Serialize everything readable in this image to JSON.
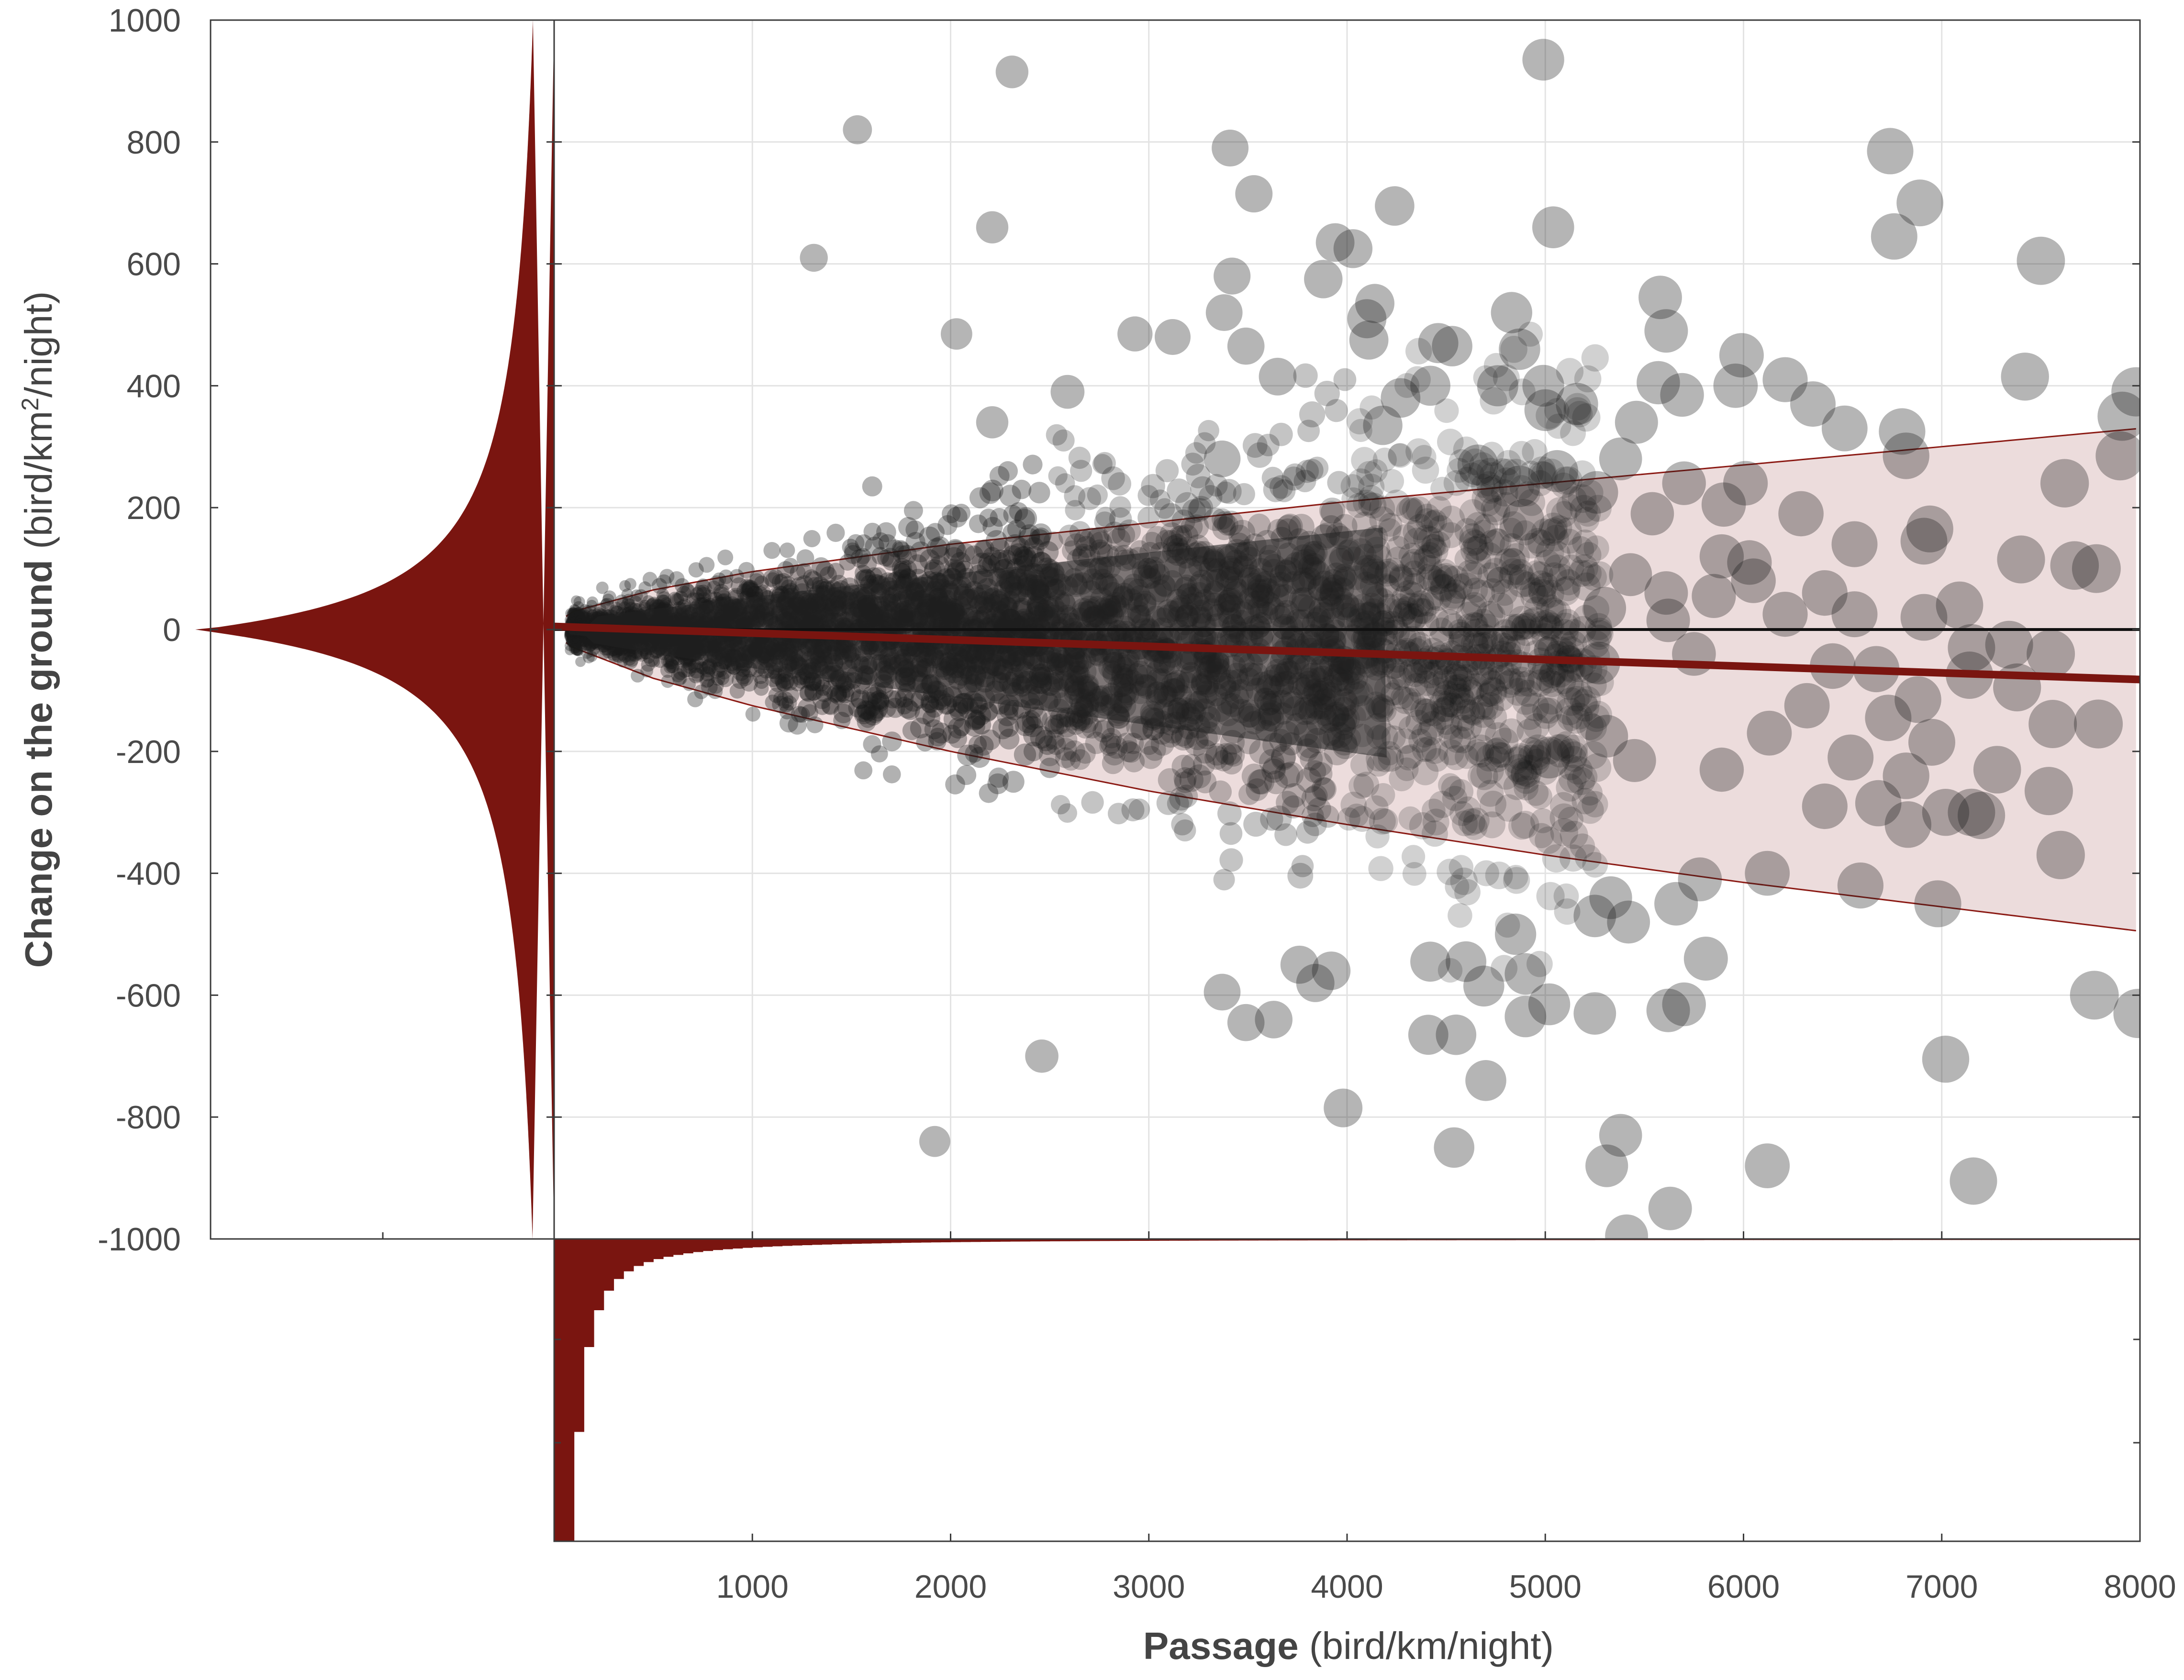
{
  "chart_data": {
    "type": "scatter",
    "xlabel": {
      "bold": "Passage",
      "normal": " (bird/km/night)"
    },
    "ylabel": {
      "bold": "Change on the ground",
      "normal_pre": " (bird/km",
      "sup": "2",
      "normal_post": "/night)"
    },
    "xlim": [
      0,
      8000
    ],
    "ylim": [
      -1000,
      1000
    ],
    "x_ticks": [
      "1000",
      "2000",
      "3000",
      "4000",
      "5000",
      "6000",
      "7000",
      "8000"
    ],
    "y_ticks": [
      "1000",
      "800",
      "600",
      "400",
      "200",
      "0",
      "-200",
      "-400",
      "-600",
      "-800",
      "-1000"
    ],
    "grid": true,
    "colors": {
      "points": "#1a1a1a",
      "histogram": "#7a1510",
      "envelope_fill": "#ecdcdc",
      "envelope_line": "#8b1a14",
      "trend_line": "#7a1510",
      "zero_line": "#111111"
    },
    "trend_line": {
      "x": [
        0,
        8000
      ],
      "y": [
        5,
        -82
      ]
    },
    "envelope_upper": {
      "x": [
        100,
        500,
        1000,
        2000,
        3000,
        4000,
        5000,
        6000,
        7000,
        8000
      ],
      "y": [
        30,
        65,
        95,
        140,
        175,
        210,
        240,
        270,
        300,
        330
      ]
    },
    "envelope_lower": {
      "x": [
        100,
        500,
        1000,
        2000,
        3000,
        4000,
        5000,
        6000,
        7000,
        8000
      ],
      "y": [
        -30,
        -80,
        -125,
        -200,
        -265,
        -320,
        -370,
        -415,
        -455,
        -495
      ]
    },
    "series": [
      {
        "name": "",
        "points": [
          [
            2310,
            915
          ],
          [
            4990,
            935
          ],
          [
            1530,
            820
          ],
          [
            3410,
            790
          ],
          [
            6740,
            785
          ],
          [
            6890,
            700
          ],
          [
            3530,
            715
          ],
          [
            4240,
            695
          ],
          [
            2210,
            660
          ],
          [
            5040,
            660
          ],
          [
            6760,
            645
          ],
          [
            3940,
            635
          ],
          [
            4030,
            625
          ],
          [
            7500,
            605
          ],
          [
            1310,
            610
          ],
          [
            3420,
            580
          ],
          [
            3880,
            575
          ],
          [
            5580,
            545
          ],
          [
            4140,
            535
          ],
          [
            4100,
            510
          ],
          [
            4830,
            520
          ],
          [
            3380,
            520
          ],
          [
            5610,
            490
          ],
          [
            5990,
            450
          ],
          [
            4460,
            470
          ],
          [
            4530,
            465
          ],
          [
            2930,
            485
          ],
          [
            2030,
            485
          ],
          [
            3490,
            465
          ],
          [
            4110,
            475
          ],
          [
            4870,
            460
          ],
          [
            3120,
            480
          ],
          [
            6210,
            410
          ],
          [
            7420,
            415
          ],
          [
            7980,
            390
          ],
          [
            4990,
            400
          ],
          [
            5000,
            360
          ],
          [
            4760,
            400
          ],
          [
            4270,
            380
          ],
          [
            4180,
            335
          ],
          [
            5570,
            405
          ],
          [
            5690,
            385
          ],
          [
            5960,
            400
          ],
          [
            6350,
            370
          ],
          [
            5460,
            340
          ],
          [
            5160,
            370
          ],
          [
            4420,
            400
          ],
          [
            3650,
            415
          ],
          [
            2590,
            390
          ],
          [
            2210,
            340
          ],
          [
            6510,
            330
          ],
          [
            6800,
            325
          ],
          [
            7910,
            350
          ],
          [
            7900,
            285
          ],
          [
            6820,
            285
          ],
          [
            5380,
            280
          ],
          [
            5060,
            260
          ],
          [
            4660,
            270
          ],
          [
            3370,
            280
          ],
          [
            5700,
            240
          ],
          [
            6010,
            240
          ],
          [
            7620,
            240
          ],
          [
            5260,
            225
          ],
          [
            4870,
            235
          ],
          [
            6290,
            190
          ],
          [
            6940,
            165
          ],
          [
            5900,
            205
          ],
          [
            5540,
            190
          ],
          [
            4890,
            180
          ],
          [
            6560,
            140
          ],
          [
            7670,
            105
          ],
          [
            7400,
            115
          ],
          [
            7780,
            100
          ],
          [
            5890,
            120
          ],
          [
            6030,
            110
          ],
          [
            6910,
            145
          ],
          [
            6050,
            80
          ],
          [
            5430,
            90
          ],
          [
            5610,
            60
          ],
          [
            6410,
            60
          ],
          [
            5850,
            55
          ],
          [
            7090,
            40
          ],
          [
            5300,
            35
          ],
          [
            6210,
            25
          ],
          [
            6560,
            25
          ],
          [
            5620,
            15
          ],
          [
            6910,
            20
          ],
          [
            7550,
            -40
          ],
          [
            7150,
            -30
          ],
          [
            7340,
            -25
          ],
          [
            7140,
            -75
          ],
          [
            7380,
            -95
          ],
          [
            6450,
            -60
          ],
          [
            6670,
            -65
          ],
          [
            5750,
            -40
          ],
          [
            5270,
            -55
          ],
          [
            7560,
            -155
          ],
          [
            7790,
            -155
          ],
          [
            6730,
            -145
          ],
          [
            6880,
            -115
          ],
          [
            6320,
            -125
          ],
          [
            6950,
            -185
          ],
          [
            6130,
            -170
          ],
          [
            5310,
            -175
          ],
          [
            5020,
            -210
          ],
          [
            5450,
            -215
          ],
          [
            5890,
            -230
          ],
          [
            6540,
            -210
          ],
          [
            6820,
            -240
          ],
          [
            7280,
            -230
          ],
          [
            7540,
            -265
          ],
          [
            7020,
            -300
          ],
          [
            6680,
            -285
          ],
          [
            6410,
            -290
          ],
          [
            6830,
            -320
          ],
          [
            7200,
            -305
          ],
          [
            7150,
            -300
          ],
          [
            7600,
            -370
          ],
          [
            6590,
            -420
          ],
          [
            6120,
            -400
          ],
          [
            5780,
            -410
          ],
          [
            5660,
            -450
          ],
          [
            5330,
            -440
          ],
          [
            5420,
            -480
          ],
          [
            5250,
            -470
          ],
          [
            4850,
            -500
          ],
          [
            4600,
            -545
          ],
          [
            4420,
            -545
          ],
          [
            5810,
            -540
          ],
          [
            6980,
            -450
          ],
          [
            4690,
            -585
          ],
          [
            4900,
            -565
          ],
          [
            5700,
            -615
          ],
          [
            5620,
            -625
          ],
          [
            5250,
            -630
          ],
          [
            4900,
            -635
          ],
          [
            3840,
            -580
          ],
          [
            3760,
            -550
          ],
          [
            3920,
            -560
          ],
          [
            3490,
            -645
          ],
          [
            3370,
            -595
          ],
          [
            3630,
            -640
          ],
          [
            7770,
            -600
          ],
          [
            7990,
            -630
          ],
          [
            4410,
            -665
          ],
          [
            4550,
            -665
          ],
          [
            5020,
            -615
          ],
          [
            4700,
            -740
          ],
          [
            7020,
            -705
          ],
          [
            3980,
            -785
          ],
          [
            2460,
            -700
          ],
          [
            1920,
            -840
          ],
          [
            5380,
            -830
          ],
          [
            5310,
            -880
          ],
          [
            4540,
            -850
          ],
          [
            6120,
            -880
          ],
          [
            7160,
            -905
          ],
          [
            5630,
            -950
          ],
          [
            5410,
            -995
          ]
        ]
      }
    ]
  }
}
